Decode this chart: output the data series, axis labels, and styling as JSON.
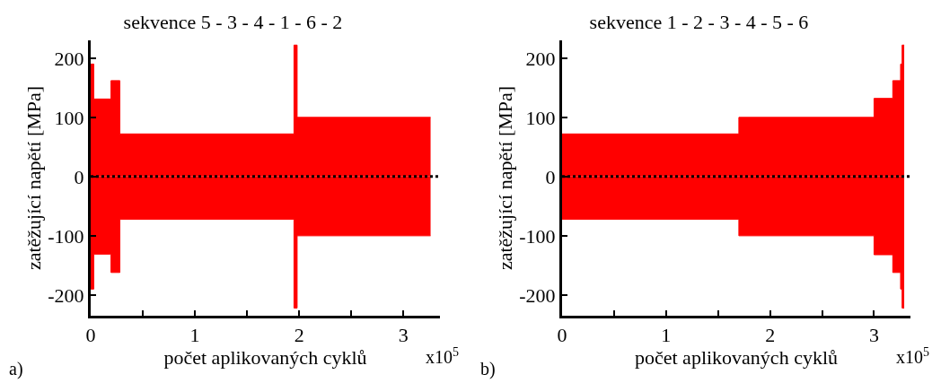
{
  "chart_data": [
    {
      "type": "area",
      "title": "sekvence 5 - 3 - 4 - 1 - 6 - 2",
      "xlabel": "počet aplikovaných cyklů",
      "ylabel": "zatěžující napětí [MPa]",
      "x": [
        0,
        0.03,
        0.03,
        0.195,
        0.195,
        0.28,
        0.28,
        1.95,
        1.95,
        1.98,
        1.98,
        3.26
      ],
      "series": [
        {
          "color": "#ff0000",
          "values": [
            190,
            190,
            131,
            131,
            162,
            162,
            72,
            72,
            222,
            222,
            100,
            100
          ]
        },
        {
          "color": "#ff0000",
          "values": [
            -190,
            -190,
            -131,
            -131,
            -162,
            -162,
            -72,
            -72,
            -222,
            -222,
            -100,
            -100
          ]
        }
      ],
      "xlim": [
        0,
        3.35
      ],
      "xticks": [
        0,
        {
          "value": 0.5,
          "label": null
        },
        1,
        {
          "value": 1.5,
          "label": null
        },
        2,
        {
          "value": 2.5,
          "label": null
        },
        3
      ],
      "ylim": [
        -235,
        230
      ],
      "yticks": [
        -200,
        -100,
        0,
        100,
        200
      ],
      "ref_lines": [
        {
          "axis": "y",
          "value": 0,
          "color": "#000000",
          "line_style": "dotted"
        }
      ],
      "annotations": [
        "x10$^{5}$",
        "a)"
      ],
      "grid": false
    },
    {
      "type": "area",
      "title": "sekvence 1 - 2 - 3 - 4 - 5 - 6",
      "xlabel": "počet aplikovaných cyklů",
      "ylabel": "zatěžující napětí [MPa]",
      "x": [
        0,
        1.7,
        1.7,
        3.0,
        3.0,
        3.18,
        3.18,
        3.255,
        3.255,
        3.27,
        3.27,
        3.29
      ],
      "series": [
        {
          "color": "#ff0000",
          "values": [
            72,
            72,
            100,
            100,
            132,
            132,
            162,
            162,
            190,
            190,
            222,
            222
          ]
        },
        {
          "color": "#ff0000",
          "values": [
            -72,
            -72,
            -100,
            -100,
            -132,
            -132,
            -162,
            -162,
            -190,
            -190,
            -222,
            -222
          ]
        }
      ],
      "xlim": [
        0,
        3.35
      ],
      "xticks": [
        0,
        {
          "value": 0.5,
          "label": null
        },
        1,
        {
          "value": 1.5,
          "label": null
        },
        2,
        {
          "value": 2.5,
          "label": null
        },
        3
      ],
      "ylim": [
        -235,
        230
      ],
      "yticks": [
        -200,
        -100,
        0,
        100,
        200
      ],
      "ref_lines": [
        {
          "axis": "y",
          "value": 0,
          "color": "#000000",
          "line_style": "dotted"
        }
      ],
      "annotations": [
        "x10$^{5}$",
        "b)"
      ],
      "grid": false
    }
  ]
}
